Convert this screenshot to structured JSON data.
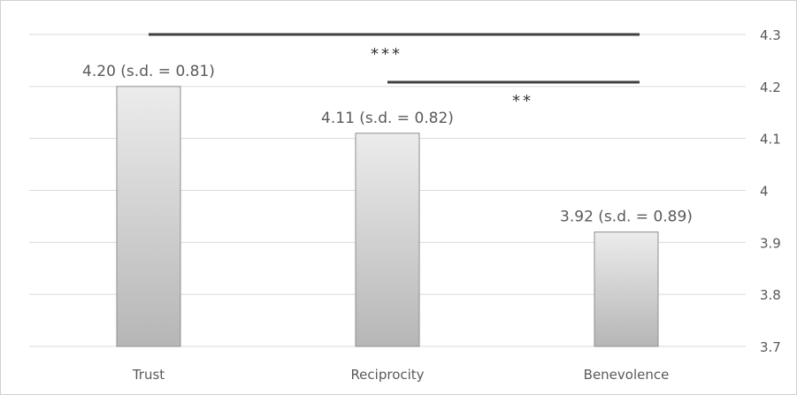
{
  "chart_data": {
    "type": "bar",
    "categories": [
      "Trust",
      "Reciprocity",
      "Benevolence"
    ],
    "values": [
      4.2,
      4.11,
      3.92
    ],
    "data_labels": [
      "4.20 (s.d. = 0.81)",
      "4.11 (s.d. = 0.82)",
      "3.92 (s.d. = 0.89)"
    ],
    "ylim": [
      3.7,
      4.3
    ],
    "yticks": [
      "3.7",
      "3.8",
      "3.9",
      "4",
      "4.1",
      "4.2",
      "4.3"
    ],
    "y_axis_side": "right",
    "grid": true,
    "significance": [
      {
        "from": "Trust",
        "to": "Benevolence",
        "label": "***"
      },
      {
        "from": "Reciprocity",
        "to": "Benevolence",
        "label": "**"
      }
    ],
    "colors": {
      "bar_top": "#ececec",
      "bar_bottom": "#b6b6b6",
      "bar_border": "#8f8f8f",
      "grid": "#d9d9d9",
      "bracket": "#404040",
      "text": "#595959"
    }
  }
}
